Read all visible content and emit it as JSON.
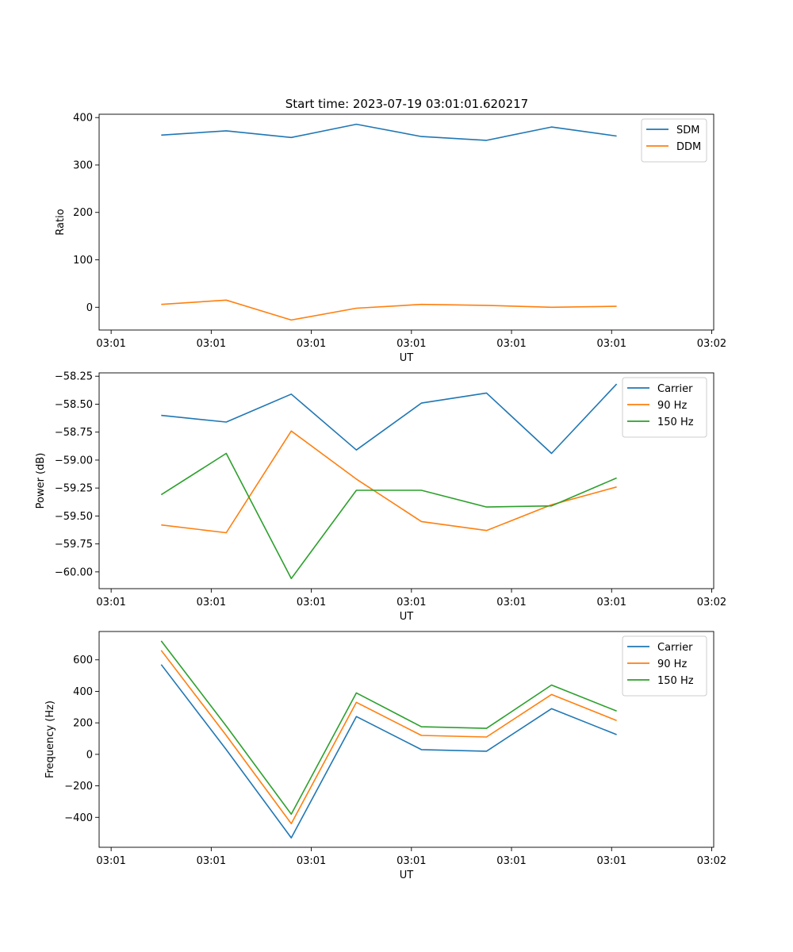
{
  "figure": {
    "title": "Start time: 2023-07-19 03:01:01.620217"
  },
  "chart_data": [
    {
      "type": "line",
      "title": "Start time: 2023-07-19 03:01:01.620217",
      "xlabel": "UT",
      "ylabel": "Ratio",
      "x": [
        0.5,
        1.15,
        1.8,
        2.45,
        3.1,
        3.75,
        4.4,
        5.05
      ],
      "xlim": [
        -0.12,
        6.02
      ],
      "xticks": [
        0,
        1,
        2,
        3,
        4,
        5,
        6
      ],
      "xtick_labels": [
        "03:01",
        "03:01",
        "03:01",
        "03:01",
        "03:01",
        "03:01",
        "03:02"
      ],
      "ylim": [
        -48,
        407
      ],
      "yticks": [
        0,
        100,
        200,
        300,
        400
      ],
      "ytick_labels": [
        "0",
        "100",
        "200",
        "300",
        "400"
      ],
      "legend_position": "top-right",
      "series": [
        {
          "name": "SDM",
          "color": "#1f77b4",
          "values": [
            363,
            372,
            358,
            386,
            360,
            352,
            380,
            361
          ]
        },
        {
          "name": "DDM",
          "color": "#ff7f0e",
          "values": [
            6,
            15,
            -27,
            -2,
            6,
            4,
            0,
            2
          ]
        }
      ]
    },
    {
      "type": "line",
      "title": "",
      "xlabel": "UT",
      "ylabel": "Power (dB)",
      "x": [
        0.5,
        1.15,
        1.8,
        2.45,
        3.1,
        3.75,
        4.4,
        5.05
      ],
      "xlim": [
        -0.12,
        6.02
      ],
      "xticks": [
        0,
        1,
        2,
        3,
        4,
        5,
        6
      ],
      "xtick_labels": [
        "03:01",
        "03:01",
        "03:01",
        "03:01",
        "03:01",
        "03:01",
        "03:02"
      ],
      "ylim": [
        -60.15,
        -58.22
      ],
      "yticks": [
        -60.0,
        -59.75,
        -59.5,
        -59.25,
        -59.0,
        -58.75,
        -58.5,
        -58.25
      ],
      "ytick_labels": [
        "−60.00",
        "−59.75",
        "−59.50",
        "−59.25",
        "−59.00",
        "−58.75",
        "−58.50",
        "−58.25"
      ],
      "legend_position": "top-right",
      "series": [
        {
          "name": "Carrier",
          "color": "#1f77b4",
          "values": [
            -58.6,
            -58.66,
            -58.41,
            -58.91,
            -58.49,
            -58.4,
            -58.94,
            -58.32
          ]
        },
        {
          "name": "90 Hz",
          "color": "#ff7f0e",
          "values": [
            -59.58,
            -59.65,
            -58.74,
            -59.17,
            -59.55,
            -59.63,
            -59.4,
            -59.24
          ]
        },
        {
          "name": "150 Hz",
          "color": "#2ca02c",
          "values": [
            -59.31,
            -58.94,
            -60.06,
            -59.27,
            -59.27,
            -59.42,
            -59.41,
            -59.16
          ]
        }
      ]
    },
    {
      "type": "line",
      "title": "",
      "xlabel": "UT",
      "ylabel": "Frequency (Hz)",
      "x": [
        0.5,
        1.15,
        1.8,
        2.45,
        3.1,
        3.75,
        4.4,
        5.05
      ],
      "xlim": [
        -0.12,
        6.02
      ],
      "xticks": [
        0,
        1,
        2,
        3,
        4,
        5,
        6
      ],
      "xtick_labels": [
        "03:01",
        "03:01",
        "03:01",
        "03:01",
        "03:01",
        "03:01",
        "03:02"
      ],
      "ylim": [
        -590,
        780
      ],
      "yticks": [
        -400,
        -200,
        0,
        200,
        400,
        600
      ],
      "ytick_labels": [
        "−400",
        "−200",
        "0",
        "200",
        "400",
        "600"
      ],
      "legend_position": "top-right",
      "series": [
        {
          "name": "Carrier",
          "color": "#1f77b4",
          "values": [
            570,
            30,
            -530,
            240,
            30,
            20,
            290,
            125
          ]
        },
        {
          "name": "90 Hz",
          "color": "#ff7f0e",
          "values": [
            660,
            120,
            -440,
            330,
            120,
            110,
            380,
            215
          ]
        },
        {
          "name": "150 Hz",
          "color": "#2ca02c",
          "values": [
            720,
            180,
            -380,
            390,
            175,
            165,
            440,
            275
          ]
        }
      ]
    }
  ]
}
